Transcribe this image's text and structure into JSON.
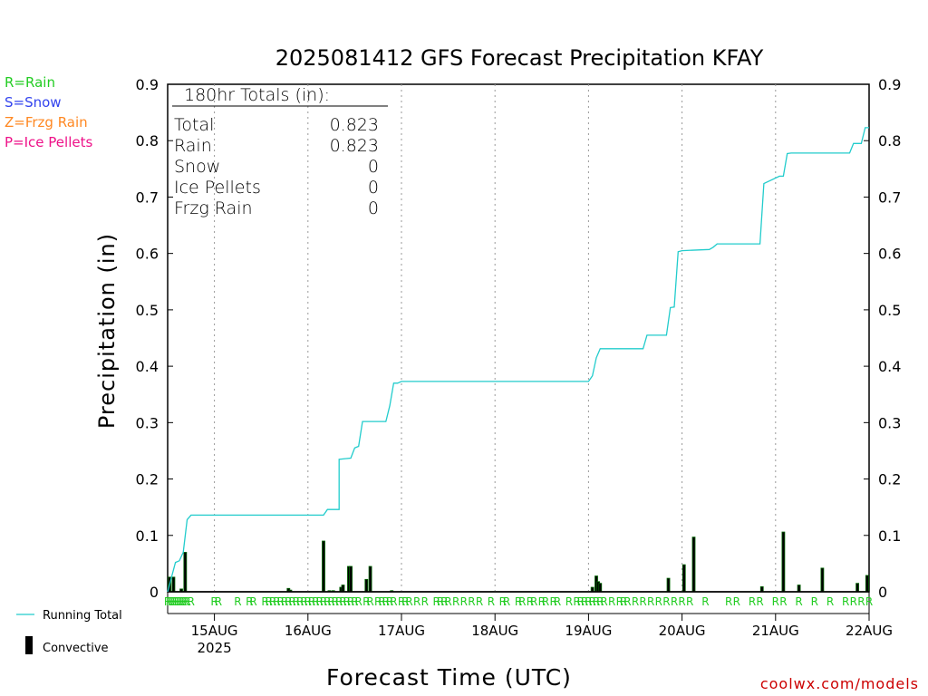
{
  "title": "2025081412 GFS Forecast Precipitation KFAY",
  "precip_type_legend": [
    {
      "label": "R=Rain",
      "color": "#22cc22"
    },
    {
      "label": "S=Snow",
      "color": "#3344ee"
    },
    {
      "label": "Z=Frzg Rain",
      "color": "#ff8822"
    },
    {
      "label": "P=Ice Pellets",
      "color": "#ee1188"
    }
  ],
  "totals_box": {
    "header": "180hr Totals (in):",
    "rows": [
      {
        "label": "Total",
        "value": "0.823"
      },
      {
        "label": "Rain",
        "value": "0.823"
      },
      {
        "label": "Snow",
        "value": "0"
      },
      {
        "label": "Ice Pellets",
        "value": "0"
      },
      {
        "label": "Frzg Rain",
        "value": "0"
      }
    ]
  },
  "series_legend": {
    "running_total": "Running Total",
    "convective": "Convective",
    "running_total_color": "#22cccc",
    "convective_color": "#000000",
    "bar_edge_color": "#006600"
  },
  "credit": "coolwx.com/models",
  "chart_data": {
    "type": "line",
    "title": "2025081412 GFS Forecast Precipitation KFAY",
    "xlabel": "Forecast Time (UTC)",
    "ylabel": "Precipitation (in)",
    "ylim": [
      0,
      0.9
    ],
    "y_ticks": [
      "0",
      "0.1",
      "0.2",
      "0.3",
      "0.4",
      "0.5",
      "0.6",
      "0.7",
      "0.8",
      "0.9"
    ],
    "x_unit": "forecast hour",
    "xlim": [
      0,
      180
    ],
    "x_ticks": [
      {
        "hour": 12,
        "label": "15AUG",
        "sublabel": "2025"
      },
      {
        "hour": 36,
        "label": "16AUG"
      },
      {
        "hour": 60,
        "label": "17AUG"
      },
      {
        "hour": 84,
        "label": "18AUG"
      },
      {
        "hour": 108,
        "label": "19AUG"
      },
      {
        "hour": 132,
        "label": "20AUG"
      },
      {
        "hour": 156,
        "label": "21AUG"
      },
      {
        "hour": 180,
        "label": "22AUG"
      }
    ],
    "grid": "vertical dotted at day boundaries",
    "series": [
      {
        "name": "Running Total",
        "type": "line",
        "x": [
          0,
          1,
          2,
          3,
          4,
          5,
          6,
          40,
          41,
          42,
          43,
          44,
          44,
          47,
          48,
          49,
          50,
          51,
          56,
          57,
          58,
          59,
          60,
          108,
          109,
          110,
          111,
          122,
          123,
          128,
          129,
          130,
          131,
          132,
          139,
          140,
          141,
          152,
          153,
          157,
          158,
          159,
          160,
          174,
          175,
          176,
          177,
          178,
          179,
          180
        ],
        "y": [
          0.0,
          0.026,
          0.052,
          0.055,
          0.07,
          0.128,
          0.136,
          0.136,
          0.146,
          0.146,
          0.146,
          0.146,
          0.235,
          0.237,
          0.255,
          0.258,
          0.302,
          0.302,
          0.302,
          0.33,
          0.37,
          0.37,
          0.373,
          0.373,
          0.383,
          0.415,
          0.431,
          0.431,
          0.455,
          0.455,
          0.504,
          0.505,
          0.603,
          0.605,
          0.607,
          0.611,
          0.617,
          0.617,
          0.724,
          0.737,
          0.737,
          0.777,
          0.778,
          0.778,
          0.778,
          0.795,
          0.795,
          0.795,
          0.823,
          0.823
        ]
      },
      {
        "name": "Convective",
        "type": "bar",
        "x": [
          0.5,
          1.5,
          3.5,
          4.5,
          31.0,
          31.5,
          40.0,
          41.5,
          42.5,
          44.5,
          45.0,
          46.5,
          47.0,
          51.0,
          52.0,
          57.5,
          109.0,
          110.0,
          110.5,
          111.0,
          128.5,
          132.5,
          135.0,
          152.5,
          158.0,
          162.0,
          168.0,
          177.0,
          179.5
        ],
        "y": [
          0.026,
          0.026,
          0.005,
          0.07,
          0.006,
          0.003,
          0.09,
          0.002,
          0.002,
          0.008,
          0.012,
          0.045,
          0.045,
          0.022,
          0.045,
          0.002,
          0.008,
          0.028,
          0.018,
          0.015,
          0.024,
          0.048,
          0.097,
          0.009,
          0.106,
          0.012,
          0.042,
          0.015,
          0.029
        ]
      }
    ],
    "precip_type_markers": {
      "symbol": "R",
      "meaning": "Rain",
      "hours": [
        0,
        0.5,
        1,
        1.5,
        2,
        2.5,
        3,
        3.5,
        4,
        4.5,
        5,
        6,
        12,
        13,
        18,
        21,
        22,
        25,
        26,
        27,
        28,
        29,
        30,
        31,
        32,
        33,
        34,
        35,
        36,
        37,
        38,
        39,
        40,
        41,
        42,
        43,
        44,
        45,
        46,
        47,
        48,
        49,
        51,
        52,
        54,
        55,
        56,
        57,
        58,
        60,
        61,
        62,
        64,
        66,
        69,
        70,
        71,
        72,
        74,
        76,
        78,
        80,
        83,
        86,
        87,
        90,
        91,
        93,
        94,
        96,
        97,
        99,
        100,
        103,
        105,
        106,
        107,
        108,
        109,
        110,
        111,
        112,
        114,
        116,
        117,
        118,
        120,
        122,
        124,
        126,
        128,
        130,
        132,
        134,
        138,
        144,
        146,
        150,
        152,
        156,
        158,
        162,
        166,
        170,
        174,
        176,
        178,
        180
      ]
    }
  }
}
